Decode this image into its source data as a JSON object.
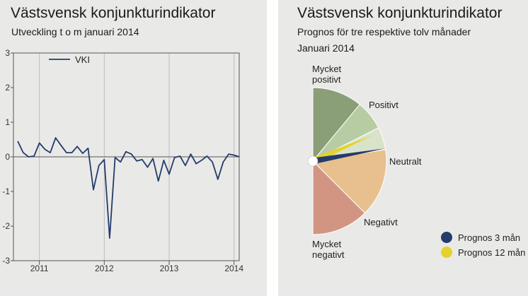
{
  "left_panel": {
    "title": "Västsvensk konjunkturindikator",
    "subtitle": "Utveckling t o m januari 2014"
  },
  "right_panel": {
    "title": "Västsvensk konjunkturindikator",
    "subtitle_line1": "Prognos för tre respektive tolv månader",
    "subtitle_line2": "Januari 2014"
  },
  "chart_data": [
    {
      "type": "line",
      "title": "Västsvensk konjunkturindikator",
      "subtitle": "Utveckling t o m januari 2014",
      "ylim": [
        -3,
        3
      ],
      "yticks": [
        3,
        2,
        1,
        0,
        -1,
        -2,
        -3
      ],
      "xlim": [
        2010.6,
        2014.08
      ],
      "xticks": [
        {
          "value": 2011,
          "label": "2011"
        },
        {
          "value": 2012,
          "label": "2012"
        },
        {
          "value": 2013,
          "label": "2013"
        },
        {
          "value": 2014,
          "label": "2014"
        }
      ],
      "grid": "vertical",
      "legend": "top-left",
      "series": [
        {
          "name": "VKI",
          "color": "#243b6b",
          "x": [
            2010.667,
            2010.75,
            2010.833,
            2010.917,
            2011.0,
            2011.083,
            2011.167,
            2011.25,
            2011.333,
            2011.417,
            2011.5,
            2011.583,
            2011.667,
            2011.75,
            2011.833,
            2011.917,
            2012.0,
            2012.083,
            2012.167,
            2012.25,
            2012.333,
            2012.417,
            2012.5,
            2012.583,
            2012.667,
            2012.75,
            2012.833,
            2012.917,
            2013.0,
            2013.083,
            2013.167,
            2013.25,
            2013.333,
            2013.417,
            2013.5,
            2013.583,
            2013.667,
            2013.75,
            2013.833,
            2013.917,
            2014.0,
            2014.083
          ],
          "values": [
            0.45,
            0.12,
            0.0,
            0.02,
            0.4,
            0.22,
            0.12,
            0.55,
            0.33,
            0.12,
            0.12,
            0.3,
            0.1,
            0.25,
            -0.95,
            -0.25,
            -0.08,
            -2.35,
            -0.02,
            -0.15,
            0.15,
            0.08,
            -0.12,
            -0.08,
            -0.3,
            -0.05,
            -0.7,
            -0.1,
            -0.5,
            -0.02,
            0.02,
            -0.25,
            0.08,
            -0.2,
            -0.1,
            0.02,
            -0.15,
            -0.65,
            -0.15,
            0.08,
            0.05,
            0.0
          ]
        }
      ]
    },
    {
      "type": "pie",
      "title": "Västsvensk konjunkturindikator",
      "subtitle": "Prognos för tre respektive tolv månader",
      "caption": "Januari 2014",
      "layout": "half-pie",
      "slices": [
        {
          "label": "Mycket positivt",
          "value": 22,
          "color": "#8a9e78"
        },
        {
          "label": "Positivt",
          "value": 13,
          "color": "#b7cca2"
        },
        {
          "label": "Neutralt",
          "value": 10,
          "color": "#d9e3ca"
        },
        {
          "label": "Negativt",
          "value": 30,
          "color": "#e7c08e"
        },
        {
          "label": "Mycket negativt",
          "value": 25,
          "color": "#d29582"
        }
      ],
      "needles": [
        {
          "name": "Prognos 3 mån",
          "value": 44.5,
          "color": "#243b6b"
        },
        {
          "name": "Prognos 12 mån",
          "value": 37,
          "color": "#e6d12c"
        }
      ],
      "legend": "bottom-right"
    }
  ]
}
